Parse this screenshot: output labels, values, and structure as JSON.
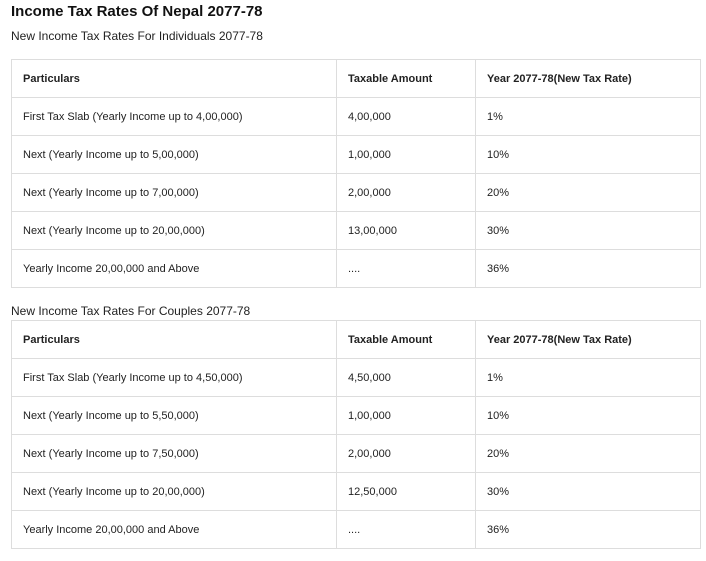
{
  "title": "Income Tax Rates Of Nepal 2077-78",
  "sections": [
    {
      "heading": "New Income Tax Rates For Individuals 2077-78",
      "columns": [
        "Particulars",
        "Taxable Amount",
        "Year 2077-78(New Tax Rate)"
      ],
      "rows": [
        [
          "First Tax Slab (Yearly Income up to 4,00,000)",
          "4,00,000",
          "1%"
        ],
        [
          "Next (Yearly Income up to 5,00,000)",
          "1,00,000",
          "10%"
        ],
        [
          "Next (Yearly Income up to 7,00,000)",
          "2,00,000",
          "20%"
        ],
        [
          "Next (Yearly Income up to 20,00,000)",
          "13,00,000",
          "30%"
        ],
        [
          "Yearly Income 20,00,000 and Above",
          "....",
          "36%"
        ]
      ]
    },
    {
      "heading": "New Income Tax Rates For Couples 2077-78",
      "columns": [
        "Particulars",
        "Taxable Amount",
        "Year 2077-78(New Tax Rate)"
      ],
      "rows": [
        [
          "First Tax Slab (Yearly Income up to 4,50,000)",
          "4,50,000",
          "1%"
        ],
        [
          "Next (Yearly Income up to 5,50,000)",
          "1,00,000",
          "10%"
        ],
        [
          "Next (Yearly Income up to 7,50,000)",
          "2,00,000",
          "20%"
        ],
        [
          "Next (Yearly Income up to 20,00,000)",
          "12,50,000",
          "30%"
        ],
        [
          "Yearly Income 20,00,000 and Above",
          "....",
          "36%"
        ]
      ]
    }
  ]
}
